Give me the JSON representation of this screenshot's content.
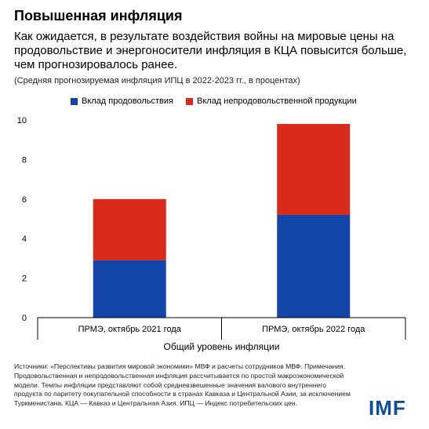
{
  "title": "Повышенная инфляция",
  "subtitle": "Как ожидается, в результате воздействия войны на мировые цены на продовольствие и энергоносители инфляция в КЦА повысится больше, чем прогнозировалось ранее.",
  "note": "(Средняя прогнозируемая инфляция ИПЦ в 2022-2023 гг., в процентах)",
  "colors": {
    "food": "#1346a8",
    "nonfood": "#d92a1c"
  },
  "chart_data": {
    "type": "bar",
    "stacked": true,
    "categories": [
      "ПРМЭ, октябрь 2021 года",
      "ПРМЭ, октябрь 2022 года"
    ],
    "series": [
      {
        "name": "Вклад продовольствия",
        "values": [
          2.9,
          5.2
        ]
      },
      {
        "name": "Вклад непродовольственной продукции",
        "values": [
          3.1,
          4.6
        ]
      }
    ],
    "xlabel": "Общий уровень инфляции",
    "ylabel": "",
    "ylim": [
      0,
      10
    ],
    "yticks": [
      0,
      2,
      4,
      6,
      8,
      10
    ],
    "legend": "top",
    "grid": false
  },
  "sources": "Источники: «Перспективы развития мировой экономики» МВФ и расчеты сотрудников МВФ. Примечания. Продовольственная и непродовольственная инфляция рассчитывается по простой макроэкономической модели. Темпы инфляции представляют собой средневзвешенные значения валового внутреннего продукта по паритету покупательной способности в странах Кавказа и Центральной Азии, за исключением Туркменистана. КЦА — Кавказ и Центральная Азия. ИПЦ — Индекс потребительских цен.",
  "logo": "IMF"
}
